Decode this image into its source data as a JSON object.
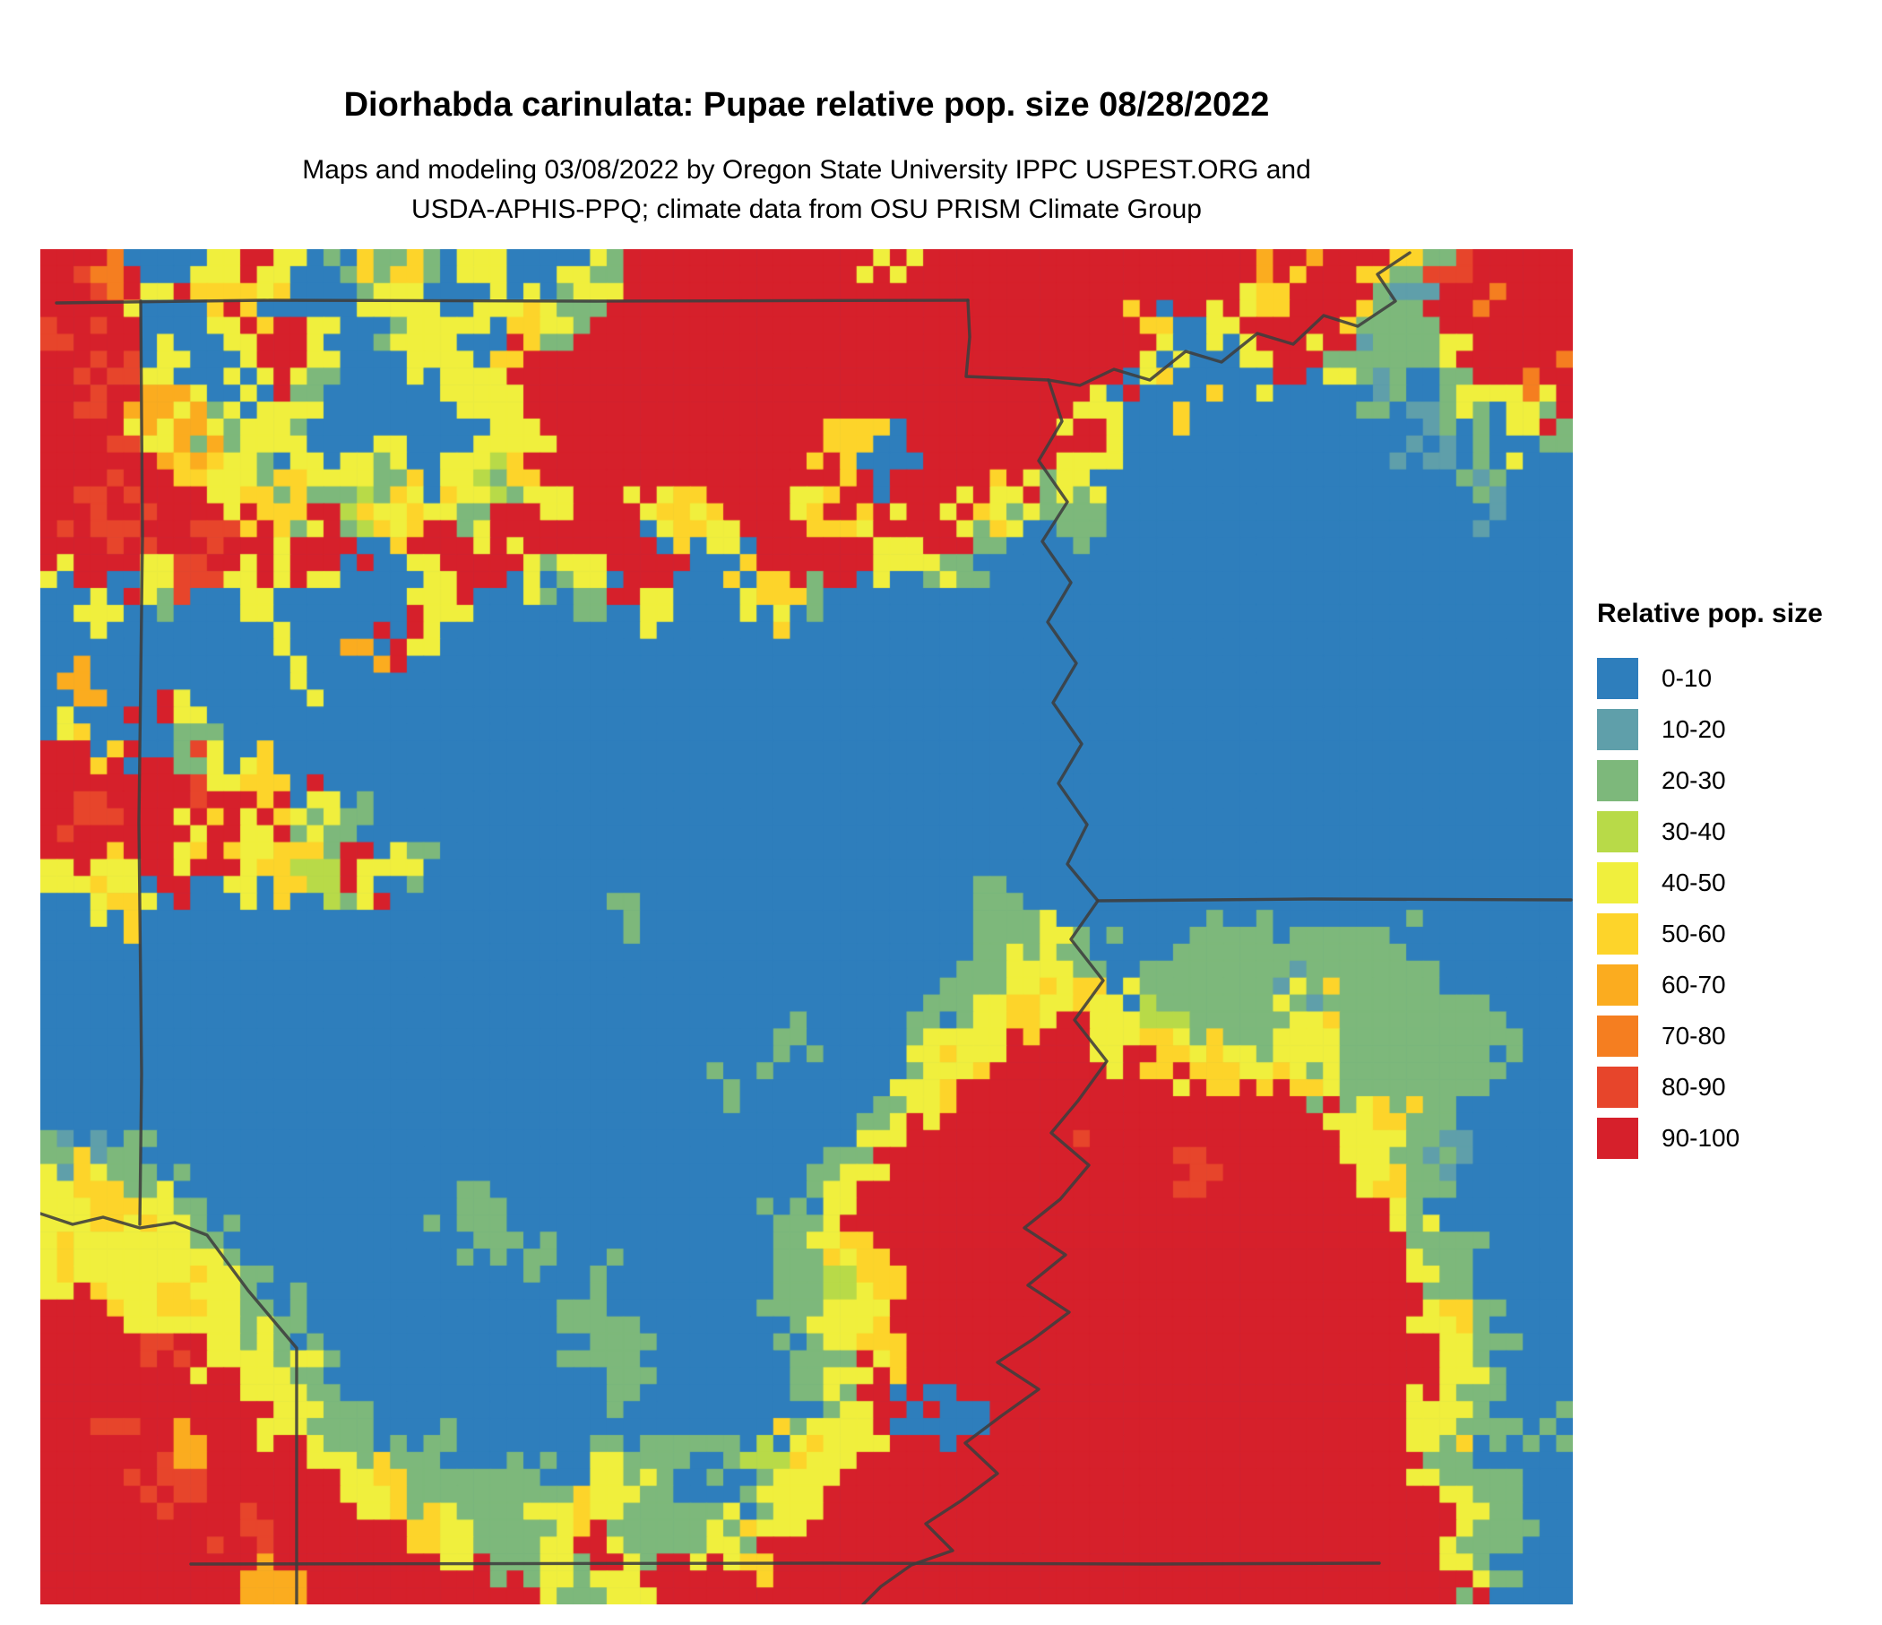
{
  "title": "Diorhabda carinulata: Pupae relative pop. size 08/28/2022",
  "subtitle_line1": "Maps and modeling 03/08/2022 by Oregon State University IPPC USPEST.ORG and",
  "subtitle_line2": "USDA-APHIS-PPQ; climate data from OSU PRISM Climate Group",
  "legend": {
    "title": "Relative pop. size",
    "labels": [
      "0-10",
      "10-20",
      "20-30",
      "30-40",
      "40-50",
      "50-60",
      "60-70",
      "70-80",
      "80-90",
      "90-100"
    ]
  },
  "map": {
    "palette": [
      "#2e7ebc",
      "#5f9faa",
      "#7db87b",
      "#b8da48",
      "#f0ef3d",
      "#fdd42a",
      "#fbac1f",
      "#f57e20",
      "#e7452b",
      "#d6202b"
    ],
    "border_color": "#3e3e3e",
    "grid_cols": 46,
    "grid_rows": 40,
    "upsample": 2,
    "seed": 1234567,
    "grid": [
      "9970049402520400429999999499999999999699528999",
      "9894955002440404299999999999999999994599219799",
      "8990049940244052999999999999999995049995229999",
      "9984004940044599999999999999999994004942124997",
      "9896440420004499999999999999999400500000202449",
      "9994624400400449999999995099999940000000012042",
      "9989542044204359999999950099994400000000001200",
      "9899945523454244994599459994542200000000000100",
      "9989989499599499990549995499200200000000000000",
      "4994894940049942499005999442000000000000000000",
      "0402004000004000204004520000000000000000000000",
      "0000000006940000000000000000000000000000000000",
      "0600000400000000000000000000000000000000000000",
      "0009400000000000000000000000000000000000000000",
      "4500200000000000000000000000000000000000000000",
      "9999845000000000000000000000000000000000000000",
      "9899999942000000000000000000000000000000000000",
      "9999454522000000000000000000000000000000000000",
      "4549994539420000000000000000000000000000000000",
      "0450000020000000020000000000220000000000000000",
      "0000000000000000000000000000224200222222200000",
      "0000000000000000000000000002244502222122220000",
      "0000000000000000000000000002454443222452222000",
      "0000000000000000000000200024499945452442222200",
      "0000000000000000000020000045999999454522222200",
      "0000000000000000000000000249999999999994522000",
      "2120000000000000000000002499999899999994421000",
      "4542000000000000000000024999999999899994520000",
      "4454200000002200000000249999999999999999420000",
      "5444420000000220000000245999999999999999942000",
      "4544542000000000200000223599999999999999942000",
      "9945442200000002200000244999999999999999945200",
      "9998944200000000220000024599999999999999994200",
      "9999994420000000020000024999999999999999994200",
      "9989999422000000000000024900999999999999945202",
      "9999699942220000022223544999999999999999942020",
      "9998899994522222442002449999999999999999994200",
      "9999998999954224522224499999999999999999994220",
      "9999899999994224942245999999999999999999994200",
      "9999996699999994249999999999999999999999999200"
    ],
    "borders": [
      [
        [
          18,
          60
        ],
        [
          250,
          57
        ],
        [
          620,
          58
        ],
        [
          1035,
          57
        ]
      ],
      [
        [
          1035,
          57
        ],
        [
          1037,
          98
        ],
        [
          1033,
          142
        ],
        [
          1125,
          146
        ]
      ],
      [
        [
          1528,
          4
        ],
        [
          1492,
          28
        ],
        [
          1512,
          58
        ],
        [
          1470,
          86
        ],
        [
          1432,
          74
        ],
        [
          1398,
          106
        ],
        [
          1358,
          94
        ],
        [
          1318,
          126
        ],
        [
          1278,
          114
        ],
        [
          1238,
          146
        ],
        [
          1198,
          134
        ],
        [
          1160,
          152
        ],
        [
          1125,
          146
        ],
        [
          1140,
          192
        ],
        [
          1114,
          236
        ],
        [
          1146,
          282
        ],
        [
          1118,
          326
        ],
        [
          1150,
          372
        ],
        [
          1124,
          416
        ],
        [
          1156,
          462
        ],
        [
          1130,
          506
        ],
        [
          1162,
          552
        ],
        [
          1136,
          596
        ],
        [
          1168,
          642
        ],
        [
          1146,
          686
        ],
        [
          1180,
          727
        ],
        [
          1150,
          770
        ],
        [
          1186,
          816
        ],
        [
          1154,
          860
        ],
        [
          1190,
          906
        ],
        [
          1158,
          950
        ],
        [
          1128,
          986
        ],
        [
          1170,
          1022
        ],
        [
          1138,
          1060
        ],
        [
          1098,
          1092
        ],
        [
          1144,
          1122
        ],
        [
          1102,
          1156
        ],
        [
          1148,
          1186
        ],
        [
          1108,
          1216
        ],
        [
          1068,
          1242
        ],
        [
          1114,
          1272
        ],
        [
          1072,
          1302
        ],
        [
          1032,
          1332
        ],
        [
          1068,
          1366
        ],
        [
          1028,
          1396
        ],
        [
          988,
          1422
        ],
        [
          1018,
          1452
        ],
        [
          972,
          1468
        ],
        [
          938,
          1492
        ],
        [
          918,
          1512
        ]
      ],
      [
        [
          1180,
          727
        ],
        [
          1420,
          725
        ],
        [
          1708,
          726
        ]
      ],
      [
        [
          112,
          58
        ],
        [
          114,
          320
        ],
        [
          110,
          640
        ],
        [
          113,
          920
        ],
        [
          111,
          1088
        ]
      ],
      [
        [
          0,
          1076
        ],
        [
          36,
          1088
        ],
        [
          70,
          1080
        ],
        [
          111,
          1092
        ],
        [
          150,
          1086
        ],
        [
          186,
          1100
        ],
        [
          232,
          1162
        ],
        [
          286,
          1226
        ],
        [
          286,
          1512
        ]
      ],
      [
        [
          168,
          1467
        ],
        [
          880,
          1466
        ],
        [
          1240,
          1467
        ],
        [
          1494,
          1466
        ]
      ]
    ]
  }
}
